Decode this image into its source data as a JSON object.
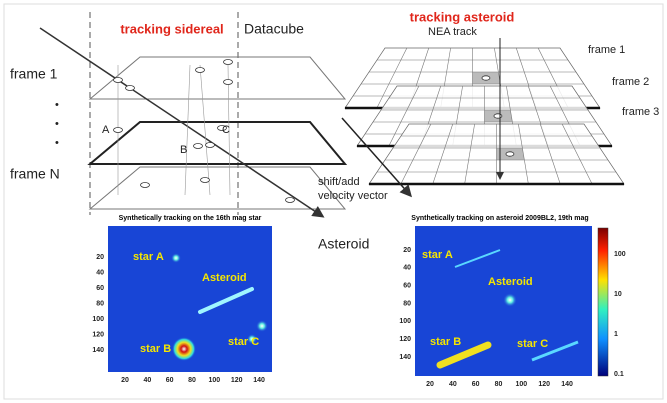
{
  "left_panel": {
    "title": "tracking sidereal",
    "datacube_label": "Datacube",
    "frame_labels": [
      "frame 1",
      "frame N"
    ],
    "dots": [
      "•",
      "•",
      "•"
    ],
    "star_labels": [
      "A",
      "B",
      "C"
    ],
    "asteroid_label": "Asteroid",
    "shift_label": [
      "shift/add",
      "velocity vector"
    ]
  },
  "right_panel": {
    "title": "tracking asteroid",
    "track_label": "NEA track",
    "frame_labels": [
      "frame 1",
      "frame 2",
      "frame 3"
    ]
  },
  "image_left": {
    "title": "Synthetically tracking on the 16th mag star",
    "labels": [
      "star A",
      "Asteroid",
      "star B",
      "star C"
    ],
    "yticks": [
      20,
      40,
      60,
      80,
      100,
      120,
      140
    ],
    "xticks": [
      20,
      40,
      60,
      80,
      100,
      120,
      140
    ]
  },
  "image_right": {
    "title": "Synthetically tracking on asteroid 2009BL2, 19th mag",
    "labels": [
      "star A",
      "Asteroid",
      "star B",
      "star C"
    ],
    "yticks": [
      20,
      40,
      60,
      80,
      100,
      120,
      140
    ],
    "xticks": [
      20,
      40,
      60,
      80,
      100,
      120,
      140
    ],
    "colorbar_ticks": [
      100,
      10,
      1,
      0.1
    ]
  }
}
